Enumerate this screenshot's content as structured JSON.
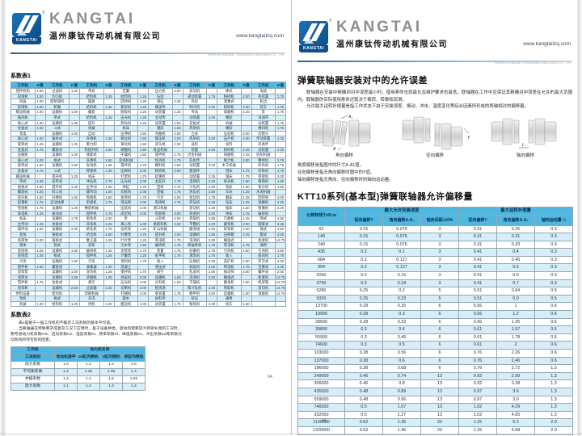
{
  "colors": {
    "brand_blue": "#0d4f8c",
    "table_header_blue": "#4fb7e0",
    "row_stripe": "#d7eef8",
    "wordmark_gray": "#8f8f8f"
  },
  "brand": {
    "wordmark": "KANGTAI",
    "logo_text": "KANGTAI",
    "reg_mark": "®",
    "company_cn": "温州康钛传动机械有限公司",
    "website": "www.kangtailzq.com",
    "company_en": "Wenzhou Kangtai Transmission Machinery Co., Ltd"
  },
  "left_page": {
    "page_number": "04",
    "table1": {
      "title": "系数表1",
      "header_rows": [
        [
          "工作机",
          "K值",
          "工作机",
          "K值",
          "工作机",
          "K值",
          "工作机",
          "K值",
          "工作机",
          "K值",
          "工作机",
          "K值",
          "工作机",
          "K值",
          "工作机",
          "K值"
        ]
      ],
      "rows": [
        [
          "搅拌机构",
          "1.00",
          "过滤机",
          "1.25",
          "带式",
          "",
          "定量",
          "",
          "压力机",
          "2.00",
          "剪切机",
          "",
          "棒式",
          "",
          "电缆",
          ""
        ],
        [
          "胶煤机",
          "1.00",
          "均匀胶",
          "",
          "给料机",
          "1.25",
          "给料机",
          "1.25",
          "压延",
          "",
          "递动装置",
          "1.75",
          "粉碎机",
          "2.00",
          "卷装置",
          "1.75"
        ],
        [
          "风扇",
          "1.00",
          "搅浆辅机",
          "",
          "圆盘",
          "",
          "回转机",
          "1.25",
          "滚压",
          "2.25",
          "热形",
          "",
          "溜塞式",
          "",
          "机边",
          ""
        ],
        [
          "胶煤机",
          "1.00",
          "轮碾",
          "",
          "给料机",
          "1.25",
          "紫砂机",
          "1.25",
          "输送传",
          "",
          "制冷机",
          "2.00",
          "粉碎机",
          "2.00",
          "绞车",
          "1.75"
        ],
        [
          "暖运机械",
          "1.00",
          "运输机",
          "1.00",
          "螺旋",
          "",
          "脱吸机",
          "1.25",
          "动装置",
          "1.25",
          "传动",
          "",
          "球磨机",
          "2.25",
          "泵",
          "1.75"
        ],
        [
          "鼓风机",
          "",
          "带式",
          "",
          "给料机",
          "1.25",
          "压光机",
          "1.25",
          "主动传",
          "",
          "动装置",
          "2.00",
          "橡胶",
          "",
          "海滩带",
          ""
        ],
        [
          "离心式",
          "1.00",
          "运输机",
          "1.00",
          "提升",
          "",
          "剃光机",
          "1.25",
          "动装置",
          "1.50",
          "桂拔式",
          "",
          "机械",
          "",
          "动装置",
          "1.75"
        ],
        [
          "往复式",
          "1.50",
          "斗式",
          "",
          "机械",
          "",
          "机床",
          "",
          "辊床",
          "1.50",
          "热杂机",
          "",
          "橡胶",
          "",
          "缠斜机",
          "1.75"
        ],
        [
          "泵类",
          "",
          "运输机",
          "1.50",
          "自动",
          "",
          "压伸机",
          "1.50",
          "弯曲机",
          "2.00",
          "立式",
          "",
          "压延机",
          "2.00",
          "切割头",
          ""
        ],
        [
          "离心式",
          "1.00",
          "链条式",
          "",
          "升降机",
          "1.25",
          "氧化机",
          "1.50",
          "锻压机",
          "2.00",
          "热杂机",
          "2.00",
          "压片机",
          "2.00",
          "传动装置",
          "2.25"
        ],
        [
          "旋转式",
          "1.25",
          "运输机",
          "1.25",
          "重力卸",
          "",
          "黄化机",
          "1.50",
          "双头机",
          "2.50",
          "送料",
          "",
          "投料",
          "",
          "夹具传",
          ""
        ],
        [
          "往复式",
          "1.75",
          "螺旋式",
          "",
          "料提升机",
          "1.50",
          "硬酸机",
          "1.50",
          "食品机械",
          "",
          "装置",
          "2.00",
          "粉碎机",
          "2.25",
          "动装置",
          "2.25"
        ],
        [
          "压缩机",
          "",
          "运输机",
          "1.25",
          "倾卸式",
          "",
          "干燥机",
          "1.50",
          "搅拌机",
          "1.75",
          "冶金机械",
          "",
          "研磨机",
          "2.25",
          "纺织机械",
          ""
        ],
        [
          "离心式",
          "1.25",
          "板式",
          "",
          "升降机",
          "1.50",
          "造纸机械",
          "",
          "绞肉机",
          "1.75",
          "轧机传",
          "",
          "榨汁机",
          "2.00",
          "整经机",
          "1.75"
        ],
        [
          "旋转式",
          "1.50",
          "运输机",
          "1.50",
          "发电机",
          "1.25",
          "搅拌机",
          "1.75",
          "糖料机",
          "2.00",
          "动装置",
          "2.00",
          "木工机械",
          "",
          "织布机",
          "1.75"
        ],
        [
          "往复式",
          "1.75",
          "斗式",
          "",
          "焊接机",
          "1.25",
          "压榨机",
          "2.00",
          "粉碎机",
          "2.00",
          "辊道传",
          "",
          "刨床",
          "1.75",
          "印染机",
          "1.75"
        ],
        [
          "输送机械",
          "",
          "提升机",
          "1.25",
          "机床",
          "",
          "打浆机",
          "1.75",
          "起重机",
          "",
          "动装置",
          "2.25",
          "锯床",
          "1.75",
          "卷取机",
          "2.00"
        ],
        [
          "带式",
          "1.25",
          "皮带式",
          "",
          "冲压机",
          "1.75",
          "压光机",
          "2.00",
          "主起升",
          "1.75",
          "连铸机",
          "2.25",
          "砂光机",
          "1.50",
          "络筒机",
          "1.50"
        ],
        [
          "链板式",
          "1.50",
          "提升机",
          "1.25",
          "主传动",
          "1.25",
          "烘缸",
          "1.75",
          "回转",
          "1.75",
          "冷轧机",
          "2.00",
          "铣床",
          "1.50",
          "浆纱机",
          "1.50"
        ],
        [
          "螺旋式",
          "1.25",
          "料斗式",
          "",
          "辅传动",
          "1.00",
          "切纸机",
          "2.00",
          "变幅",
          "1.75",
          "热轧机",
          "2.50",
          "车床",
          "1.25",
          "水泥机械",
          ""
        ],
        [
          "提升机",
          "1.50",
          "升降机",
          "1.50",
          "卷板机",
          "1.50",
          "复卷机",
          "1.75",
          "行走",
          "2.00",
          "拉丝机",
          "1.75",
          "磨床",
          "1.25",
          "回转窑",
          "2.00"
        ],
        [
          "起重机",
          "1.75",
          "自动扶梯",
          "",
          "剪板机",
          "1.75",
          "湿压榨",
          "2.00",
          "卷扬机",
          "1.75",
          "挤压机",
          "2.25",
          "钻床",
          "1.25",
          "球磨机",
          "2.25"
        ],
        [
          "卷扬机",
          "1.75",
          "运输机",
          "1.25",
          "橡胶机械",
          "",
          "压延机",
          "2.00",
          "港口机械",
          "",
          "剪切机",
          "2.25",
          "插床",
          "1.50",
          "管磨机",
          "2.25"
        ],
        [
          "发电机",
          "1.25",
          "振动式",
          "",
          "搅拌机",
          "1.75",
          "成型机",
          "2.00",
          "装卸桥",
          "2.00",
          "矫直机",
          "2.00",
          "冲床",
          "1.75",
          "破碎机",
          ""
        ],
        [
          "机床",
          "",
          "运输机",
          "1.75",
          "密炼机",
          "2.00",
          "泵",
          "",
          "斗轮机",
          "2.00",
          "卷取机",
          "2.00",
          "刃磨机",
          "1.25",
          "颚式",
          "2.50"
        ],
        [
          "主传动",
          "1.25",
          "往复式",
          "",
          "开炼机",
          "2.25",
          "离心泵",
          "1.00",
          "堆取料机",
          "2.00",
          "平整机",
          "2.00",
          "磨浆机",
          "2.00",
          "圆锥式",
          "2.25"
        ],
        [
          "辅传动",
          "1.00",
          "运输机",
          "2.00",
          "硫化机",
          "1.75",
          "齿轮泵",
          "1.25",
          "矿山机械",
          "",
          "酸洗线",
          "2.00",
          "碎浆机",
          "2.00",
          "锤式",
          "2.50"
        ],
        [
          "变恒",
          "",
          "链板式",
          "",
          "挤出机",
          "2.00",
          "柱塞泵",
          "1.75",
          "提升机",
          "2.00",
          "运输机",
          "1.50",
          "压榨辊",
          "2.25",
          "辊式",
          "2.00"
        ],
        [
          "纯液体",
          "1.00",
          "链板式",
          "",
          "集尘器",
          "1.25",
          "叶片泵",
          "1.25",
          "卷浸机",
          "1.75",
          "洗涤机",
          "2.00",
          "桶扭式",
          "",
          "松紧机",
          "≥2.75"
        ],
        [
          "液体",
          "",
          "刮式",
          "",
          "泥浆",
          "",
          "污水泵",
          "1.50",
          "破碎机",
          "1.75",
          "和破碎机",
          "1.75",
          "卷浸机",
          "1.75",
          "通用",
          ""
        ],
        [
          "急固体",
          "1.25",
          "运输机",
          "1.50",
          "破碎机",
          "1.25",
          "泥浆泵",
          "1.75",
          "装置",
          "1.75",
          "砂磨机",
          "1.75",
          "引风机",
          "1.50",
          "引风机",
          "1.50"
        ],
        [
          "变密度",
          "1.25",
          "板式",
          "",
          "搅拌机",
          "1.25",
          "计量泵",
          "1.25",
          "纸平机",
          "1.75",
          "淹乳机",
          "1.75",
          "吸入",
          "",
          "鼓风机",
          "1.75"
        ],
        [
          "污泥",
          "",
          "运输机",
          "1.50",
          "污泥",
          "",
          "混料机",
          "1.75",
          "吸入",
          "",
          "压缩机",
          "2.00",
          "洗矿机",
          "2.00",
          "罗茨式",
          "2.00"
        ],
        [
          "搅拌机",
          "1.50",
          "螺旋式",
          "",
          "收集器",
          "1.25",
          "混凝土",
          "",
          "液压式",
          "",
          "剥皮机",
          "2.00",
          "筛选机",
          "1.75",
          "活塞式",
          "2.25"
        ],
        [
          "泥浆泵",
          "",
          "运输机",
          "1.50",
          "泥坑机",
          "1.25",
          "搅拌机",
          "1.75",
          "真空",
          "",
          "乱皮机",
          "2.00",
          "振动筛",
          "2.00",
          "螺杆式",
          "2.00"
        ],
        [
          "泥厚主",
          "",
          "运输机",
          "1.50",
          "浓缩机",
          "1.25",
          "剥皮机",
          "2.00",
          "运输机",
          "1.50",
          "洗涤机",
          "2.00",
          "桶扭式",
          "",
          "松紧机",
          "≥2.75"
        ],
        [
          "搅拌机",
          "1.75",
          "往复式",
          "",
          "真空",
          "",
          "压光机",
          "2.00",
          "分科机",
          "1.50",
          "干燥机",
          "",
          "醒发机",
          "1.50",
          "机架辊",
          "≥2.75"
        ],
        [
          "泥浆和",
          "",
          "运输机",
          "2.50",
          "过滤器",
          "1.25",
          "切断机",
          "2.00",
          "粗洗涤",
          "",
          "和冷轧机",
          "2.00",
          "卷取机",
          "",
          "剪切机",
          "≥2.75"
        ],
        [
          "供料设备",
          "",
          "给料机",
          "",
          "印刷机械",
          "",
          "打捆机",
          "2.00",
          "卷装置",
          "1.75",
          "颗平机",
          "2.00",
          "运输机",
          "1.50",
          "消极机",
          "≥2.75"
        ],
        [
          "泵机",
          "",
          "板式",
          "",
          "开浇",
          "",
          "圆木",
          "",
          "加料传",
          "",
          "砂石",
          "",
          "通用",
          "",
          "",
          ""
        ],
        [
          "机械",
          "1.00",
          "给料机",
          "1.25",
          "烘机",
          "1.00",
          "搬运机",
          "2.00",
          "动装置",
          "1.75",
          "粉碎机",
          "2.00",
          "绞车",
          "1.50",
          "",
          ""
        ]
      ]
    },
    "table2": {
      "title": "系数表2",
      "notes": [
        "表2是基于一般工作机的不确定工况系数的基本平均值。",
        "当联轴器在特殊要求或复杂工况下应用时，基于设备种类、驱动和需要较大转矩补偿的工况时，",
        "要考虑动力机系数KW、启动系数KZ、温度系数Kt、频率系数Kf、峰值系数Ks、冲击系数Kd等系数对",
        "动系统的综合影响因素。"
      ],
      "header1_col1": "工作机",
      "header1_group": "动力机名称",
      "header2": [
        "工况类别",
        "电动机透平",
        "≥4缸内燃机",
        "2缸内燃机",
        "单缸内燃机"
      ],
      "rows": [
        [
          "动力系数",
          "1.0",
          "1.2",
          "1.4",
          "1.6"
        ],
        [
          "不均衡系数",
          "1.2",
          "1.25",
          "1.35",
          "1.4"
        ],
        [
          "共振系数",
          "1.2",
          "1.4",
          "1.5",
          "1.62"
        ],
        [
          "放大系数",
          "1.1",
          "1.2",
          "1.3",
          "1.4"
        ]
      ]
    }
  },
  "right_page": {
    "page_number": "05",
    "section1": {
      "title": "弹簧联轴器安装对中的允许误差",
      "para1": "联轴器在安装中精确到对中误差最小时，使用寿命也就最长及维护要求也最低。联轴器在工作中应保证其精确对中误差在允许的最大范围内。联轴器的实际使用寿命还取决于载荷、转数和润滑。",
      "para2": "允许最大运转补偿量是指工作状态下由于安装误差、振动、冲击、温度变化等综合因素所形成的两轴相对的偏移量。",
      "diagrams": [
        {
          "caption": "角向偏移",
          "ann_top": "A₁",
          "ann_bottom": "A"
        },
        {
          "caption": "径向偏移",
          "ann_side": "Y"
        },
        {
          "caption": "轴向偏移",
          "ann_bottom": "L"
        }
      ],
      "notes": [
        "角度偏移是指图中的尺寸A-A1值。",
        "径向偏移是指无角向偏移时图中的Y值。",
        "轴向偏移是指无角向、径向偏移时的轴向运动量。"
      ]
    },
    "section2": {
      "title": "KTT10系列(基本型)弹簧联轴器允许偏移量",
      "col_torque": "公称转矩TnN.m",
      "group1": "最大允许安装误差",
      "group2": "最大运转补偿量",
      "sub1": [
        "径向偏移Y",
        "角向偏移A-A₁",
        "轴向间距±10%"
      ],
      "sub2": [
        "径向偏移Y",
        "角向偏移A-A₁",
        "轴向运动量 ½"
      ],
      "rows": [
        [
          "52",
          "0.15",
          "0.076",
          "3",
          "0.31",
          "0.25",
          "0.3"
        ],
        [
          "149",
          "0.15",
          "0.076",
          "3",
          "0.31",
          "0.31",
          "0.3"
        ],
        [
          "249",
          "0.15",
          "0.076",
          "3",
          "0.31",
          "0.33",
          "0.3"
        ],
        [
          "435",
          "0.2",
          "0.1",
          "3",
          "0.41",
          "0.4",
          "0.3"
        ],
        [
          "684",
          "0.2",
          "0.127",
          "3",
          "0.41",
          "0.45",
          "0.3"
        ],
        [
          "994",
          "0.2",
          "0.127",
          "3",
          "0.41",
          "0.5",
          "0.3"
        ],
        [
          "2050",
          "0.2",
          "0.15",
          "3",
          "0.41",
          "0.6",
          "0.3"
        ],
        [
          "3730",
          "0.2",
          "0.18",
          "3",
          "0.41",
          "0.7",
          "0.3"
        ],
        [
          "6280",
          "0.25",
          "0.2",
          "5",
          "0.51",
          "0.84",
          "0.5"
        ],
        [
          "9320",
          "0.25",
          "0.23",
          "5",
          "0.51",
          "0.9",
          "0.5"
        ],
        [
          "13700",
          "0.28",
          "0.25",
          "6",
          "0.56",
          "1",
          "0.6"
        ],
        [
          "19900",
          "0.28",
          "0.3",
          "6",
          "0.56",
          "1.2",
          "0.6"
        ],
        [
          "28600",
          "0.28",
          "0.33",
          "6",
          "0.56",
          "1.35",
          "0.6"
        ],
        [
          "39800",
          "0.3",
          "0.4",
          "6",
          "0.61",
          "1.57",
          "0.6"
        ],
        [
          "55900",
          "0.3",
          "0.45",
          "6",
          "0.61",
          "1.78",
          "0.6"
        ],
        [
          "74600",
          "0.3",
          "0.5",
          "6",
          "0.61",
          "2",
          "0.6"
        ],
        [
          "103000",
          "0.38",
          "0.56",
          "6",
          "0.76",
          "2.26",
          "0.6"
        ],
        [
          "137000",
          "0.38",
          "0.6",
          "6",
          "0.76",
          "2.46",
          "0.6"
        ],
        [
          "186000",
          "0.38",
          "0.68",
          "6",
          "0.76",
          "2.72",
          "1.3"
        ],
        [
          "249000",
          "0.46",
          "0.74",
          "13",
          "0.92",
          "2.99",
          "1.3"
        ],
        [
          "306000",
          "0.46",
          "0.8",
          "13",
          "0.92",
          "3.28",
          "1.3"
        ],
        [
          "435000",
          "0.48",
          "0.89",
          "13",
          "0.97",
          "3.6",
          "1.3"
        ],
        [
          "559000",
          "0.48",
          "0.96",
          "13",
          "0.97",
          "3.9",
          "1.3"
        ],
        [
          "746000",
          "0.5",
          "1.07",
          "13",
          "1.02",
          "4.29",
          "1.3"
        ],
        [
          "932000",
          "0.5",
          "1.27",
          "13",
          "1.02",
          "4.65",
          "1.3"
        ],
        [
          "1130000",
          "0.62",
          "1.35",
          "20",
          "1.25",
          "5.2",
          "2.0"
        ],
        [
          "1320000",
          "0.62",
          "1.46",
          "20",
          "1.25",
          "5.68",
          "2.0"
        ]
      ]
    }
  }
}
